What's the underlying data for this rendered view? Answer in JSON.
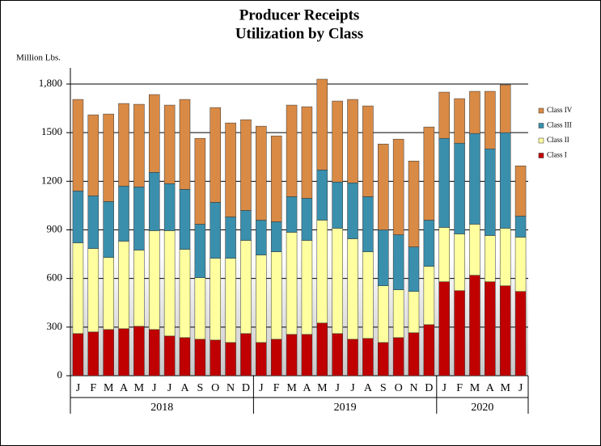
{
  "chart_data": {
    "type": "stacked_bar",
    "title": "Producer Receipts",
    "subtitle": "Utilization by Class",
    "y_label": "Million Lbs.",
    "categories": [
      "J",
      "F",
      "M",
      "A",
      "M",
      "J",
      "J",
      "A",
      "S",
      "O",
      "N",
      "D",
      "J",
      "F",
      "M",
      "A",
      "M",
      "J",
      "J",
      "A",
      "S",
      "O",
      "N",
      "D",
      "J",
      "F",
      "M",
      "A",
      "M",
      "J"
    ],
    "x_groups": [
      {
        "label": "2018",
        "count": 12
      },
      {
        "label": "2019",
        "count": 12
      },
      {
        "label": "2020",
        "count": 6
      }
    ],
    "series": [
      {
        "name": "Class I",
        "color": "#c00000",
        "values": [
          260,
          270,
          285,
          290,
          305,
          285,
          245,
          235,
          225,
          220,
          205,
          260,
          205,
          225,
          255,
          255,
          325,
          260,
          225,
          230,
          205,
          235,
          265,
          315,
          580,
          525,
          620,
          580,
          555,
          520
        ]
      },
      {
        "name": "Class II",
        "color": "#ffffa0",
        "values": [
          560,
          515,
          445,
          540,
          470,
          610,
          650,
          545,
          380,
          505,
          520,
          575,
          540,
          540,
          630,
          580,
          635,
          650,
          620,
          535,
          350,
          295,
          255,
          360,
          335,
          350,
          315,
          285,
          355,
          335
        ]
      },
      {
        "name": "Class III",
        "color": "#3a8fad",
        "values": [
          320,
          325,
          345,
          340,
          390,
          360,
          290,
          370,
          330,
          345,
          255,
          185,
          215,
          185,
          220,
          260,
          310,
          285,
          345,
          340,
          345,
          340,
          275,
          285,
          550,
          560,
          560,
          535,
          590,
          130
        ]
      },
      {
        "name": "Class IV",
        "color": "#d98a45",
        "values": [
          565,
          500,
          540,
          510,
          510,
          480,
          485,
          555,
          530,
          585,
          580,
          560,
          580,
          530,
          565,
          565,
          560,
          500,
          515,
          560,
          530,
          590,
          530,
          575,
          285,
          275,
          260,
          355,
          295,
          310
        ]
      }
    ],
    "ylim": [
      0,
      1800
    ],
    "yticks": [
      0,
      300,
      600,
      900,
      1200,
      1500,
      {
        "value": 1800,
        "label": "1,800"
      }
    ],
    "grid": true,
    "legend": "right"
  }
}
